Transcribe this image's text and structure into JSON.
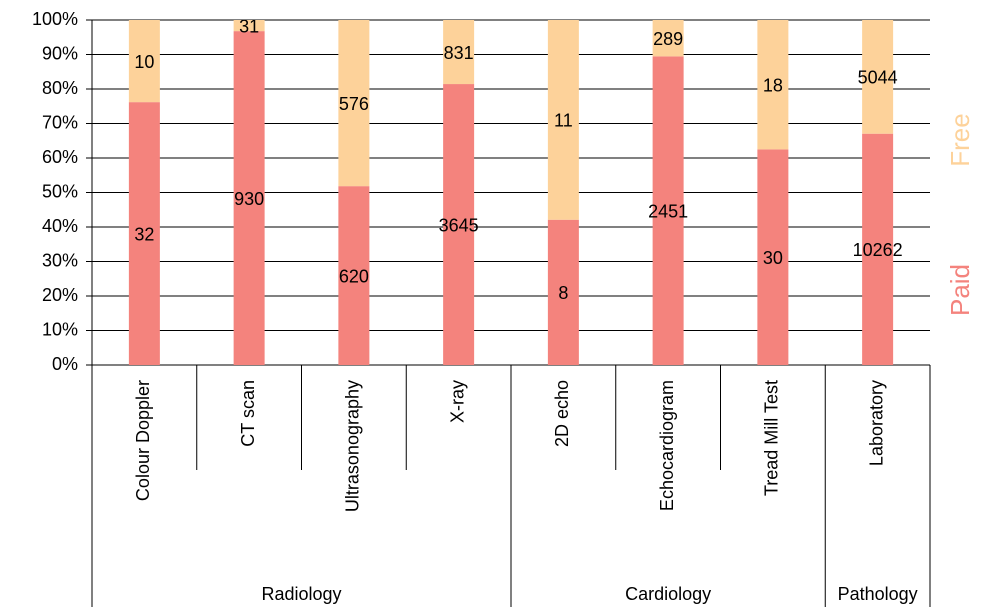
{
  "chart_data": {
    "type": "bar",
    "stacking": "percent",
    "groups": [
      {
        "name": "Radiology",
        "categories": [
          "Colour Doppler",
          "CT scan",
          "Ultrasonography",
          "X-ray"
        ]
      },
      {
        "name": "Cardiology",
        "categories": [
          "2D echo",
          "Echocardiogram",
          "Tread Mill Test"
        ]
      },
      {
        "name": "Pathology",
        "categories": [
          "Laboratory"
        ]
      }
    ],
    "series": [
      {
        "name": "Paid",
        "color": "#f4837d",
        "values": [
          32,
          930,
          620,
          3645,
          8,
          2451,
          30,
          10262
        ]
      },
      {
        "name": "Free",
        "color": "#fdd29a",
        "values": [
          10,
          31,
          576,
          831,
          11,
          289,
          18,
          5044
        ]
      }
    ],
    "ylim": [
      0,
      100
    ],
    "yticks": [
      {
        "value": 0,
        "label": "0%"
      },
      {
        "value": 10,
        "label": "10%"
      },
      {
        "value": 20,
        "label": "20%"
      },
      {
        "value": 30,
        "label": "30%"
      },
      {
        "value": 40,
        "label": "40%"
      },
      {
        "value": 50,
        "label": "50%"
      },
      {
        "value": 60,
        "label": "60%"
      },
      {
        "value": 70,
        "label": "70%"
      },
      {
        "value": 80,
        "label": "80%"
      },
      {
        "value": 90,
        "label": "90%"
      },
      {
        "value": 100,
        "label": "100%"
      }
    ],
    "grid": true,
    "legend": "right"
  }
}
